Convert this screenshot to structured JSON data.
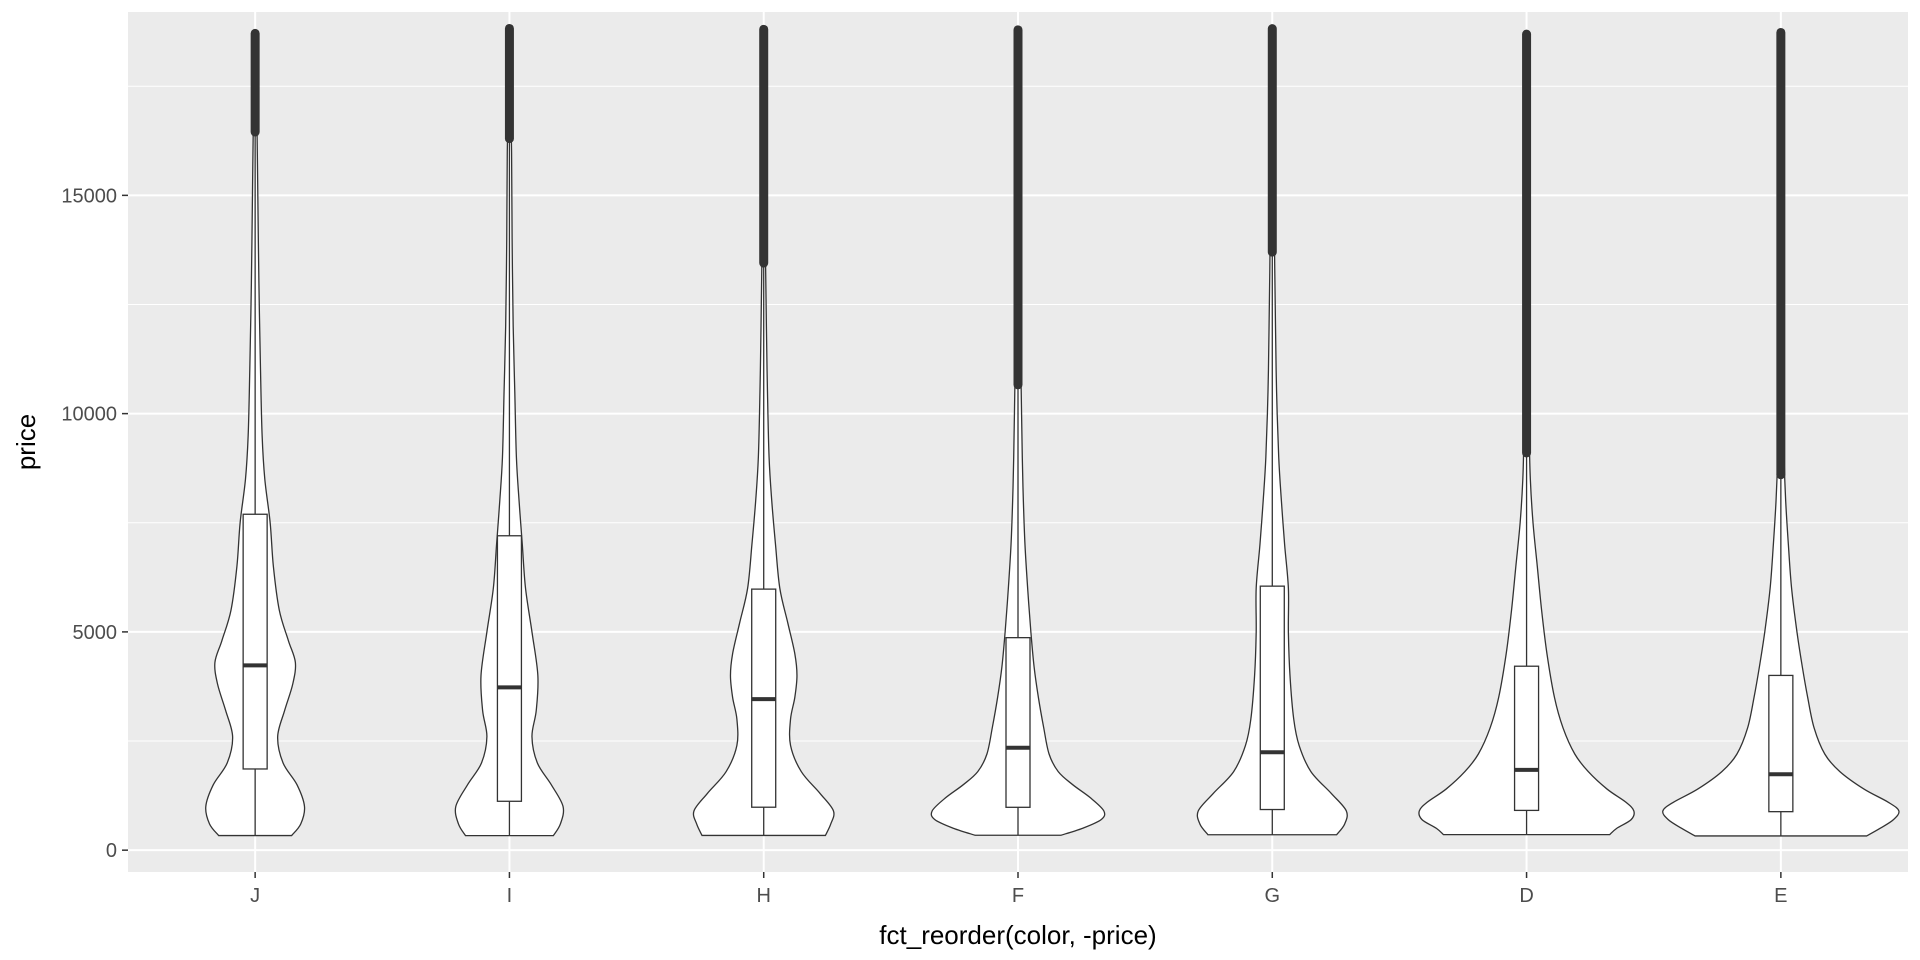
{
  "chart_data": {
    "type": "violin",
    "xlabel": "fct_reorder(color, -price)",
    "ylabel": "price",
    "categories": [
      "J",
      "I",
      "H",
      "F",
      "G",
      "D",
      "E"
    ],
    "ylim": [
      -500,
      19200
    ],
    "yticks": [
      0,
      5000,
      10000,
      15000
    ],
    "ytick_labels": [
      "0",
      "5000",
      "10000",
      "15000"
    ],
    "grid": true,
    "colors": {
      "panel_background": "#ebebeb",
      "grid_major": "#ffffff",
      "violin_fill": "#ffffff",
      "outline": "#333333",
      "outlier": "#333333"
    },
    "groups": [
      {
        "name": "J",
        "min": 335,
        "q1": 1860,
        "median": 4234,
        "q3": 7695,
        "whisker_high": 16450,
        "max": 18710,
        "density_profile": [
          [
            335,
            0.68
          ],
          [
            600,
            0.85
          ],
          [
            1000,
            0.92
          ],
          [
            1500,
            0.78
          ],
          [
            2000,
            0.52
          ],
          [
            2600,
            0.42
          ],
          [
            3200,
            0.55
          ],
          [
            3800,
            0.7
          ],
          [
            4300,
            0.75
          ],
          [
            4800,
            0.62
          ],
          [
            5500,
            0.45
          ],
          [
            6500,
            0.34
          ],
          [
            7500,
            0.28
          ],
          [
            8500,
            0.18
          ],
          [
            9500,
            0.13
          ],
          [
            11000,
            0.1
          ],
          [
            13000,
            0.07
          ],
          [
            15000,
            0.05
          ],
          [
            17000,
            0.03
          ],
          [
            18710,
            0.0
          ]
        ]
      },
      {
        "name": "I",
        "min": 334,
        "q1": 1120,
        "median": 3730,
        "q3": 7202,
        "whisker_high": 16300,
        "max": 18823,
        "density_profile": [
          [
            334,
            0.82
          ],
          [
            600,
            0.95
          ],
          [
            1000,
            1.0
          ],
          [
            1500,
            0.78
          ],
          [
            2000,
            0.52
          ],
          [
            2600,
            0.42
          ],
          [
            3200,
            0.5
          ],
          [
            4000,
            0.53
          ],
          [
            5000,
            0.42
          ],
          [
            6000,
            0.3
          ],
          [
            7000,
            0.24
          ],
          [
            8000,
            0.18
          ],
          [
            9000,
            0.13
          ],
          [
            10500,
            0.1
          ],
          [
            12000,
            0.07
          ],
          [
            14000,
            0.05
          ],
          [
            16000,
            0.04
          ],
          [
            18823,
            0.0
          ]
        ]
      },
      {
        "name": "H",
        "min": 337,
        "q1": 984,
        "median": 3460,
        "q3": 5980,
        "whisker_high": 13450,
        "max": 18803,
        "density_profile": [
          [
            337,
            1.15
          ],
          [
            600,
            1.25
          ],
          [
            900,
            1.3
          ],
          [
            1300,
            1.05
          ],
          [
            1800,
            0.7
          ],
          [
            2400,
            0.5
          ],
          [
            3000,
            0.5
          ],
          [
            3500,
            0.58
          ],
          [
            4000,
            0.62
          ],
          [
            4500,
            0.58
          ],
          [
            5200,
            0.45
          ],
          [
            6000,
            0.3
          ],
          [
            7000,
            0.22
          ],
          [
            8000,
            0.15
          ],
          [
            9000,
            0.1
          ],
          [
            10500,
            0.07
          ],
          [
            12000,
            0.05
          ],
          [
            14000,
            0.03
          ],
          [
            16000,
            0.02
          ],
          [
            18803,
            0.0
          ]
        ]
      },
      {
        "name": "F",
        "min": 342,
        "q1": 982,
        "median": 2345,
        "q3": 4868,
        "whisker_high": 10660,
        "max": 18791,
        "density_profile": [
          [
            342,
            0.8
          ],
          [
            500,
            1.2
          ],
          [
            700,
            1.55
          ],
          [
            900,
            1.6
          ],
          [
            1200,
            1.35
          ],
          [
            1500,
            1.02
          ],
          [
            1800,
            0.75
          ],
          [
            2200,
            0.58
          ],
          [
            2800,
            0.48
          ],
          [
            3500,
            0.38
          ],
          [
            4200,
            0.3
          ],
          [
            5000,
            0.24
          ],
          [
            6000,
            0.18
          ],
          [
            7000,
            0.13
          ],
          [
            8000,
            0.1
          ],
          [
            9000,
            0.08
          ],
          [
            10500,
            0.06
          ],
          [
            12000,
            0.04
          ],
          [
            14000,
            0.03
          ],
          [
            16000,
            0.02
          ],
          [
            18791,
            0.0
          ]
        ]
      },
      {
        "name": "G",
        "min": 354,
        "q1": 931,
        "median": 2242,
        "q3": 6048,
        "whisker_high": 13700,
        "max": 18818,
        "density_profile": [
          [
            354,
            1.2
          ],
          [
            600,
            1.35
          ],
          [
            900,
            1.38
          ],
          [
            1300,
            1.1
          ],
          [
            1800,
            0.72
          ],
          [
            2400,
            0.5
          ],
          [
            3000,
            0.4
          ],
          [
            4000,
            0.33
          ],
          [
            5000,
            0.3
          ],
          [
            6000,
            0.3
          ],
          [
            7000,
            0.23
          ],
          [
            8000,
            0.17
          ],
          [
            9000,
            0.12
          ],
          [
            10500,
            0.08
          ],
          [
            12000,
            0.06
          ],
          [
            14000,
            0.04
          ],
          [
            16000,
            0.03
          ],
          [
            18818,
            0.0
          ]
        ]
      },
      {
        "name": "D",
        "min": 357,
        "q1": 911,
        "median": 1838,
        "q3": 4214,
        "whisker_high": 9100,
        "max": 18693,
        "density_profile": [
          [
            357,
            1.55
          ],
          [
            500,
            1.68
          ],
          [
            700,
            1.95
          ],
          [
            900,
            2.0
          ],
          [
            1100,
            1.85
          ],
          [
            1400,
            1.5
          ],
          [
            1800,
            1.15
          ],
          [
            2200,
            0.9
          ],
          [
            2800,
            0.68
          ],
          [
            3500,
            0.52
          ],
          [
            4500,
            0.38
          ],
          [
            5500,
            0.28
          ],
          [
            6500,
            0.2
          ],
          [
            7500,
            0.12
          ],
          [
            8500,
            0.07
          ],
          [
            9500,
            0.05
          ],
          [
            11000,
            0.04
          ],
          [
            13000,
            0.03
          ],
          [
            15000,
            0.02
          ],
          [
            18693,
            0.0
          ]
        ]
      },
      {
        "name": "E",
        "min": 326,
        "q1": 882,
        "median": 1739,
        "q3": 4003,
        "whisker_high": 8600,
        "max": 18731,
        "density_profile": [
          [
            326,
            1.6
          ],
          [
            500,
            1.85
          ],
          [
            700,
            2.1
          ],
          [
            900,
            2.2
          ],
          [
            1100,
            2.0
          ],
          [
            1400,
            1.55
          ],
          [
            1800,
            1.1
          ],
          [
            2200,
            0.82
          ],
          [
            2800,
            0.62
          ],
          [
            3500,
            0.5
          ],
          [
            4200,
            0.4
          ],
          [
            5000,
            0.3
          ],
          [
            6000,
            0.2
          ],
          [
            7000,
            0.14
          ],
          [
            8000,
            0.09
          ],
          [
            9000,
            0.06
          ],
          [
            10500,
            0.04
          ],
          [
            12000,
            0.03
          ],
          [
            14000,
            0.02
          ],
          [
            16000,
            0.015
          ],
          [
            18731,
            0.0
          ]
        ]
      }
    ]
  }
}
